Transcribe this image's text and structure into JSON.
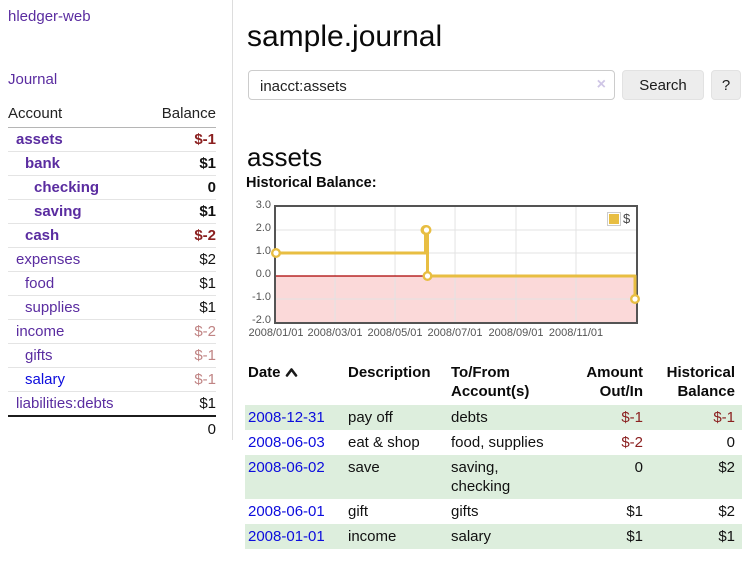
{
  "brand": "hledger-web",
  "sidebar": {
    "journal_link": "Journal",
    "accounts_table": {
      "headers": [
        "Account",
        "Balance"
      ],
      "rows": [
        {
          "name": "assets",
          "depth": 0,
          "bold": true,
          "balance": "$-1",
          "balance_style": "neg",
          "link_variant": "visited"
        },
        {
          "name": "bank",
          "depth": 1,
          "bold": true,
          "balance": "$1",
          "balance_style": "pos",
          "link_variant": "visited"
        },
        {
          "name": "checking",
          "depth": 2,
          "bold": true,
          "balance": "0",
          "balance_style": "pos",
          "link_variant": "visited"
        },
        {
          "name": "saving",
          "depth": 2,
          "bold": true,
          "balance": "$1",
          "balance_style": "pos",
          "link_variant": "visited"
        },
        {
          "name": "cash",
          "depth": 1,
          "bold": true,
          "balance": "$-2",
          "balance_style": "neg",
          "link_variant": "visited"
        },
        {
          "name": "expenses",
          "depth": 0,
          "bold": false,
          "balance": "$2",
          "balance_style": "pos",
          "link_variant": "visited"
        },
        {
          "name": "food",
          "depth": 1,
          "bold": false,
          "balance": "$1",
          "balance_style": "pos",
          "link_variant": "visited"
        },
        {
          "name": "supplies",
          "depth": 1,
          "bold": false,
          "balance": "$1",
          "balance_style": "pos",
          "link_variant": "visited"
        },
        {
          "name": "income",
          "depth": 0,
          "bold": false,
          "balance": "$-2",
          "balance_style": "neg-muted",
          "link_variant": "visited"
        },
        {
          "name": "gifts",
          "depth": 1,
          "bold": false,
          "balance": "$-1",
          "balance_style": "neg-muted",
          "link_variant": "visited"
        },
        {
          "name": "salary",
          "depth": 1,
          "bold": false,
          "balance": "$-1",
          "balance_style": "neg-muted",
          "link_variant": "unvisited"
        },
        {
          "name": "liabilities:debts",
          "depth": 0,
          "bold": false,
          "balance": "$1",
          "balance_style": "pos",
          "link_variant": "visited"
        }
      ],
      "total": "0"
    }
  },
  "header": {
    "title": "sample.journal"
  },
  "search": {
    "value": "inacct:assets",
    "clear_icon": "×",
    "button": "Search",
    "help_button": "?"
  },
  "account_page": {
    "title": "assets",
    "chart_label": "Historical Balance:"
  },
  "chart_data": {
    "type": "line",
    "title": "Historical Balance",
    "step": true,
    "series": [
      {
        "name": "$",
        "points": [
          [
            "2008-01-01",
            1
          ],
          [
            "2008-06-01",
            2
          ],
          [
            "2008-06-02",
            2
          ],
          [
            "2008-06-03",
            0
          ],
          [
            "2008-12-31",
            -1
          ]
        ]
      }
    ],
    "x_ticks": [
      "2008/01/01",
      "2008/03/01",
      "2008/05/01",
      "2008/07/01",
      "2008/09/01",
      "2008/11/01"
    ],
    "y_ticks": [
      3.0,
      2.0,
      1.0,
      0.0,
      -1.0,
      -2.0
    ],
    "xlim": [
      "2008-01-01",
      "2009-01-01"
    ],
    "ylim": [
      -2,
      3
    ],
    "grid": true,
    "legend": {
      "label": "$",
      "position": "top-right"
    }
  },
  "transactions": {
    "headers": [
      "Date",
      "Description",
      "To/From Account(s)",
      "Amount Out/In",
      "Historical Balance"
    ],
    "sort": "ascending",
    "rows": [
      {
        "date": "2008-12-31",
        "description": "pay off",
        "accounts": "debts",
        "amount": "$-1",
        "amount_style": "neg",
        "balance": "$-1",
        "balance_style": "neg"
      },
      {
        "date": "2008-06-03",
        "description": "eat & shop",
        "accounts": "food, supplies",
        "amount": "$-2",
        "amount_style": "neg",
        "balance": "0",
        "balance_style": "pos"
      },
      {
        "date": "2008-06-02",
        "description": "save",
        "accounts": "saving, checking",
        "amount": "0",
        "amount_style": "pos",
        "balance": "$2",
        "balance_style": "pos"
      },
      {
        "date": "2008-06-01",
        "description": "gift",
        "accounts": "gifts",
        "amount": "$1",
        "amount_style": "pos",
        "balance": "$2",
        "balance_style": "pos"
      },
      {
        "date": "2008-01-01",
        "description": "income",
        "accounts": "salary",
        "amount": "$1",
        "amount_style": "pos",
        "balance": "$1",
        "balance_style": "pos"
      }
    ]
  },
  "colors": {
    "accent_purple": "#5a2ca0",
    "link_blue": "#0c0cdd",
    "negative": "#8b2020",
    "negative_muted": "#c08484",
    "row_stripe_green": "#ddeedd",
    "chart_line": "#e8be42",
    "chart_negative_fill": "#fbd9d9",
    "chart_zero_line": "#aa0000",
    "chart_grid": "#e3e3e3",
    "chart_border": "#545454"
  }
}
